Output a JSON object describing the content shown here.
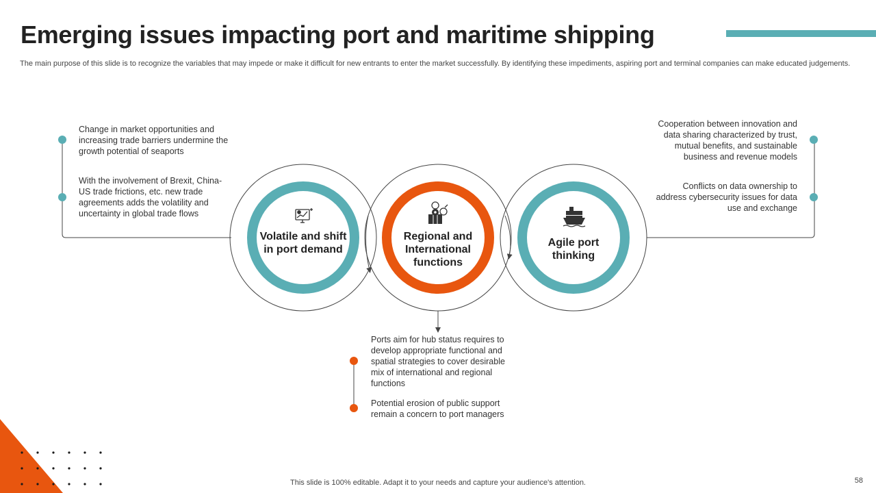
{
  "title": "Emerging issues impacting port and maritime shipping",
  "subtitle": "The main purpose of this slide is to recognize the variables that may impede or make it difficult for new entrants to enter the market successfully. By identifying these impediments, aspiring port and terminal companies can make educated judgements.",
  "circles": [
    {
      "label": "Volatile and shift in port demand",
      "icon": "monitor-chart-icon",
      "color": "#5aaeb4"
    },
    {
      "label": "Regional and International functions",
      "icon": "map-location-icon",
      "color": "#e8560f"
    },
    {
      "label": "Agile port thinking",
      "icon": "cargo-ship-icon",
      "color": "#5aaeb4"
    }
  ],
  "left_points": [
    "Change in market opportunities and increasing trade barriers undermine the growth potential of seaports",
    "With the involvement of Brexit, China-US trade frictions, etc. new trade agreements adds the volatility and uncertainty in global trade flows"
  ],
  "right_points": [
    "Cooperation between innovation and data sharing characterized by trust, mutual benefits, and sustainable business and revenue models",
    "Conflicts on data ownership to address cybersecurity issues for data use and exchange"
  ],
  "bottom_points": [
    "Ports aim for hub status requires to develop appropriate functional and spatial strategies to cover desirable mix of international and regional functions",
    "Potential erosion of public support remain a concern to port managers"
  ],
  "footer": "This slide is 100% editable. Adapt it to your needs and capture your audience's attention.",
  "page_number": "58",
  "colors": {
    "teal": "#5aaeb4",
    "orange": "#e8560f"
  }
}
